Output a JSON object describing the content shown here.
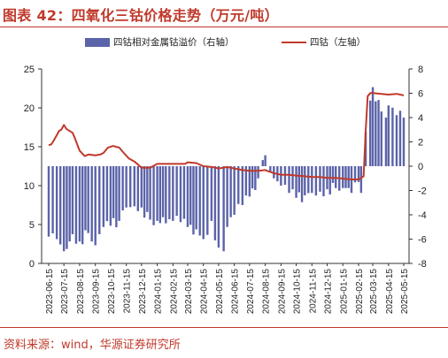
{
  "figure": {
    "title": "图表 42：四氧化三钴价格走势（万元/吨）",
    "source": "资料来源：wind，华源证券研究所"
  },
  "colors": {
    "accent": "#c0392b",
    "bar": "#5b63a9",
    "line": "#c0392b"
  },
  "chart_data": {
    "type": "bar+line",
    "x_tick_labels": [
      "2023-06-15",
      "2023-07-15",
      "2023-08-15",
      "2023-09-15",
      "2023-10-15",
      "2023-11-15",
      "2023-12-15",
      "2024-01-15",
      "2024-02-15",
      "2024-03-15",
      "2024-04-15",
      "2024-05-15",
      "2024-06-15",
      "2024-07-15",
      "2024-08-15",
      "2024-09-15",
      "2024-10-15",
      "2024-11-15",
      "2024-12-15",
      "2025-01-15",
      "2025-02-15",
      "2025-03-15",
      "2025-04-15",
      "2025-05-15"
    ],
    "left_axis": {
      "ylim": [
        0,
        25
      ],
      "ticks": [
        0,
        5,
        10,
        15,
        20,
        25
      ]
    },
    "right_axis": {
      "ylim": [
        -8,
        8
      ],
      "ticks": [
        -8,
        -6,
        -4,
        -2,
        0,
        2,
        4,
        6,
        8
      ]
    },
    "series": [
      {
        "name": "四钴相对金属钴溢价（右轴）",
        "kind": "bar",
        "axis": "right",
        "x": [
          "2023-06-15",
          "2023-07-01",
          "2023-07-15",
          "2023-08-01",
          "2023-08-15",
          "2023-09-01",
          "2023-09-15",
          "2023-10-01",
          "2023-10-15",
          "2023-11-01",
          "2023-11-15",
          "2023-12-01",
          "2023-12-15",
          "2024-01-01",
          "2024-01-15",
          "2024-02-01",
          "2024-02-15",
          "2024-03-01",
          "2024-03-15",
          "2024-04-01",
          "2024-04-15",
          "2024-05-01",
          "2024-05-15",
          "2024-05-25",
          "2024-06-01",
          "2024-06-15",
          "2024-07-01",
          "2024-07-15",
          "2024-08-01",
          "2024-08-10",
          "2024-08-15",
          "2024-08-25",
          "2024-09-01",
          "2024-09-15",
          "2024-10-01",
          "2024-10-15",
          "2024-11-01",
          "2024-11-15",
          "2024-12-01",
          "2024-12-15",
          "2025-01-01",
          "2025-01-15",
          "2025-02-01",
          "2025-02-15",
          "2025-02-20",
          "2025-03-01",
          "2025-03-10",
          "2025-03-15",
          "2025-04-01",
          "2025-04-10",
          "2025-04-15",
          "2025-05-01",
          "2025-05-15"
        ],
        "values": [
          -5.8,
          -6.0,
          -7.0,
          -5.6,
          -6.2,
          -5.5,
          -6.5,
          -5.0,
          -4.9,
          -4.5,
          -3.4,
          -3.3,
          -3.4,
          -4.4,
          -4.5,
          -4.7,
          -4.5,
          -4.6,
          -5.0,
          -5.2,
          -6.0,
          -4.5,
          -6.7,
          -7.0,
          -5.0,
          -4.0,
          -3.2,
          -2.5,
          -1.0,
          0.5,
          0.9,
          -0.5,
          -1.0,
          -1.6,
          -2.2,
          -2.6,
          -2.4,
          -2.2,
          -2.1,
          -1.9,
          -1.8,
          -1.8,
          -2.2,
          -1.3,
          -2.2,
          2.8,
          5.4,
          6.5,
          4.5,
          4.0,
          5.0,
          4.2,
          4.0
        ]
      },
      {
        "name": "四钴（左轴）",
        "kind": "line",
        "axis": "left",
        "x": [
          "2023-06-15",
          "2023-06-20",
          "2023-06-25",
          "2023-07-01",
          "2023-07-05",
          "2023-07-10",
          "2023-07-15",
          "2023-07-20",
          "2023-08-01",
          "2023-08-05",
          "2023-08-15",
          "2023-08-25",
          "2023-09-01",
          "2023-09-15",
          "2023-09-25",
          "2023-10-01",
          "2023-10-10",
          "2023-10-20",
          "2023-10-25",
          "2023-11-01",
          "2023-11-10",
          "2023-11-20",
          "2023-12-01",
          "2023-12-10",
          "2023-12-15",
          "2024-01-01",
          "2024-01-15",
          "2024-02-01",
          "2024-02-15",
          "2024-03-01",
          "2024-03-10",
          "2024-03-15",
          "2024-04-01",
          "2024-04-15",
          "2024-05-01",
          "2024-05-10",
          "2024-05-15",
          "2024-06-01",
          "2024-06-15",
          "2024-07-01",
          "2024-07-15",
          "2024-08-01",
          "2024-08-15",
          "2024-09-01",
          "2024-09-15",
          "2024-10-01",
          "2024-10-15",
          "2024-11-01",
          "2024-11-15",
          "2024-12-01",
          "2024-12-15",
          "2025-01-01",
          "2025-01-15",
          "2025-02-01",
          "2025-02-15",
          "2025-02-20",
          "2025-02-25",
          "2025-03-01",
          "2025-03-05",
          "2025-03-10",
          "2025-03-15",
          "2025-04-01",
          "2025-04-15",
          "2025-05-01",
          "2025-05-15"
        ],
        "values": [
          15.2,
          15.3,
          15.8,
          16.5,
          17.0,
          17.2,
          17.8,
          17.3,
          16.8,
          16.2,
          14.5,
          13.8,
          14.0,
          13.9,
          14.0,
          14.2,
          14.9,
          15.1,
          15.0,
          14.9,
          14.2,
          13.5,
          13.1,
          12.6,
          12.3,
          12.3,
          12.8,
          12.8,
          12.8,
          12.8,
          12.8,
          13.0,
          12.9,
          12.5,
          12.4,
          12.3,
          12.2,
          12.4,
          12.2,
          12.0,
          11.9,
          11.9,
          12.0,
          11.6,
          11.4,
          11.4,
          11.3,
          11.2,
          11.1,
          11.1,
          11.0,
          11.0,
          10.9,
          10.8,
          10.8,
          11.0,
          11.2,
          17.0,
          21.5,
          21.9,
          21.9,
          21.8,
          21.7,
          21.8,
          21.6
        ]
      }
    ]
  }
}
